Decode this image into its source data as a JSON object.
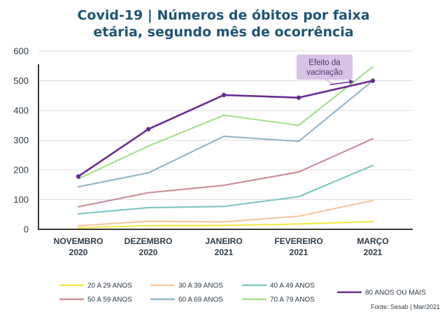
{
  "chart_data": {
    "type": "line",
    "title_line1": "Covid-19 | Números de óbitos por faixa",
    "title_line2": "etária, segundo mês de ocorrência",
    "categories": [
      [
        "NOVEMBRO",
        "2020"
      ],
      [
        "DEZEMBRO",
        "2020"
      ],
      [
        "JANEIRO",
        "2021"
      ],
      [
        "FEVEREIRO",
        "2021"
      ],
      [
        "MARÇO",
        "2021"
      ]
    ],
    "ylim": [
      0,
      600
    ],
    "yticks": [
      0,
      100,
      200,
      300,
      400,
      500,
      600
    ],
    "grid": true,
    "legend_position": "bottom",
    "series": [
      {
        "name": "20 A 29 ANOS",
        "color": "#f2ea4c",
        "values": [
          5,
          12,
          13,
          18,
          26
        ]
      },
      {
        "name": "30 A 39 ANOS",
        "color": "#f5c9a0",
        "values": [
          12,
          27,
          25,
          44,
          97
        ]
      },
      {
        "name": "40 A 49 ANOS",
        "color": "#7ec8c0",
        "values": [
          52,
          73,
          77,
          110,
          215
        ]
      },
      {
        "name": "50 A 59 ANOS",
        "color": "#cd8f98",
        "values": [
          76,
          123,
          148,
          193,
          305
        ]
      },
      {
        "name": "60 A 69 ANOS",
        "color": "#96b6c8",
        "values": [
          143,
          190,
          313,
          296,
          500
        ]
      },
      {
        "name": "70 A 79 ANOS",
        "color": "#a8e08e",
        "values": [
          170,
          280,
          384,
          350,
          547
        ]
      },
      {
        "name": "80 ANOS OU MAIS",
        "color": "#6a2c91",
        "values": [
          178,
          337,
          452,
          443,
          500
        ]
      }
    ],
    "annotation": {
      "line1": "Efeito da",
      "line2": "vacinação",
      "bg": "#d8c3e6"
    },
    "source": "Fonte: Sesab | Mar/2021"
  }
}
